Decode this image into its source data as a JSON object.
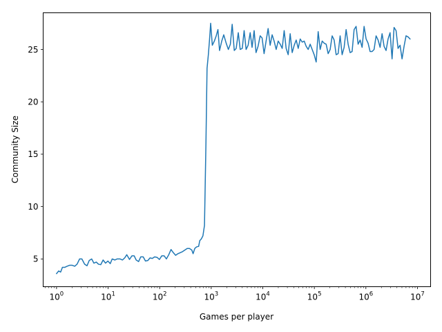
{
  "chart_data": {
    "type": "line",
    "title": "",
    "xlabel": "Games per player",
    "ylabel": "Community Size",
    "xscale": "log",
    "xlim": [
      0.55,
      18000000
    ],
    "ylim": [
      2.35,
      28.5
    ],
    "grid": false,
    "legend": "none",
    "x_ticks": [
      {
        "value": 1,
        "base": "10",
        "exp": "0"
      },
      {
        "value": 10,
        "base": "10",
        "exp": "1"
      },
      {
        "value": 100,
        "base": "10",
        "exp": "2"
      },
      {
        "value": 1000,
        "base": "10",
        "exp": "3"
      },
      {
        "value": 10000,
        "base": "10",
        "exp": "4"
      },
      {
        "value": 100000,
        "base": "10",
        "exp": "5"
      },
      {
        "value": 1000000,
        "base": "10",
        "exp": "6"
      },
      {
        "value": 10000000,
        "base": "10",
        "exp": "7"
      }
    ],
    "y_ticks": [
      {
        "value": 5,
        "label": "5"
      },
      {
        "value": 10,
        "label": "10"
      },
      {
        "value": 15,
        "label": "15"
      },
      {
        "value": 20,
        "label": "20"
      },
      {
        "value": 25,
        "label": "25"
      }
    ],
    "series": [
      {
        "color": "#1f77b4",
        "points": [
          [
            1.0,
            3.6
          ],
          [
            1.1,
            3.85
          ],
          [
            1.2,
            3.75
          ],
          [
            1.3,
            4.2
          ],
          [
            1.45,
            4.2
          ],
          [
            1.6,
            4.3
          ],
          [
            1.8,
            4.4
          ],
          [
            2.0,
            4.4
          ],
          [
            2.25,
            4.3
          ],
          [
            2.5,
            4.5
          ],
          [
            2.8,
            5.0
          ],
          [
            3.1,
            5.0
          ],
          [
            3.5,
            4.5
          ],
          [
            3.9,
            4.35
          ],
          [
            4.3,
            4.85
          ],
          [
            4.8,
            5.0
          ],
          [
            5.3,
            4.6
          ],
          [
            5.9,
            4.7
          ],
          [
            6.5,
            4.5
          ],
          [
            7.2,
            4.45
          ],
          [
            8.0,
            4.9
          ],
          [
            8.9,
            4.6
          ],
          [
            9.9,
            4.8
          ],
          [
            11,
            4.55
          ],
          [
            12,
            5.0
          ],
          [
            13.5,
            4.9
          ],
          [
            15,
            5.0
          ],
          [
            17,
            5.0
          ],
          [
            19,
            4.9
          ],
          [
            21,
            5.1
          ],
          [
            23,
            5.4
          ],
          [
            26,
            4.95
          ],
          [
            29,
            5.3
          ],
          [
            32,
            5.3
          ],
          [
            35,
            4.9
          ],
          [
            39,
            4.75
          ],
          [
            43,
            5.2
          ],
          [
            48,
            5.2
          ],
          [
            53,
            4.8
          ],
          [
            59,
            4.85
          ],
          [
            65,
            5.1
          ],
          [
            72,
            5.05
          ],
          [
            80,
            5.2
          ],
          [
            89,
            5.15
          ],
          [
            99,
            4.95
          ],
          [
            110,
            5.3
          ],
          [
            122,
            5.3
          ],
          [
            135,
            5.0
          ],
          [
            150,
            5.4
          ],
          [
            166,
            5.9
          ],
          [
            184,
            5.6
          ],
          [
            204,
            5.35
          ],
          [
            226,
            5.5
          ],
          [
            251,
            5.6
          ],
          [
            278,
            5.7
          ],
          [
            308,
            5.85
          ],
          [
            342,
            6.0
          ],
          [
            379,
            6.0
          ],
          [
            420,
            5.85
          ],
          [
            445,
            5.5
          ],
          [
            480,
            6.0
          ],
          [
            520,
            6.15
          ],
          [
            570,
            6.2
          ],
          [
            600,
            6.75
          ],
          [
            640,
            6.9
          ],
          [
            690,
            7.2
          ],
          [
            740,
            8.2
          ],
          [
            790,
            16.0
          ],
          [
            830,
            23.2
          ],
          [
            880,
            24.5
          ],
          [
            930,
            26.0
          ],
          [
            975,
            27.5
          ],
          [
            1050,
            25.4
          ],
          [
            1150,
            25.8
          ],
          [
            1250,
            26.3
          ],
          [
            1350,
            26.9
          ],
          [
            1450,
            24.9
          ],
          [
            1600,
            25.8
          ],
          [
            1750,
            26.4
          ],
          [
            1950,
            25.6
          ],
          [
            2150,
            25.0
          ],
          [
            2350,
            25.5
          ],
          [
            2550,
            27.4
          ],
          [
            2800,
            24.9
          ],
          [
            3050,
            25.1
          ],
          [
            3350,
            26.6
          ],
          [
            3650,
            25.0
          ],
          [
            4000,
            25.1
          ],
          [
            4350,
            26.8
          ],
          [
            4750,
            25.0
          ],
          [
            5200,
            25.4
          ],
          [
            5700,
            26.6
          ],
          [
            6200,
            25.2
          ],
          [
            6800,
            26.8
          ],
          [
            7400,
            24.7
          ],
          [
            8100,
            25.3
          ],
          [
            8900,
            26.3
          ],
          [
            9700,
            26.1
          ],
          [
            10600,
            24.6
          ],
          [
            11600,
            25.8
          ],
          [
            12700,
            27.0
          ],
          [
            13900,
            25.4
          ],
          [
            15200,
            26.4
          ],
          [
            16600,
            25.8
          ],
          [
            18200,
            25.0
          ],
          [
            19900,
            25.8
          ],
          [
            21800,
            25.5
          ],
          [
            23800,
            25.1
          ],
          [
            26000,
            26.8
          ],
          [
            28400,
            25.1
          ],
          [
            31100,
            24.5
          ],
          [
            34000,
            26.5
          ],
          [
            37200,
            24.7
          ],
          [
            40700,
            25.4
          ],
          [
            44500,
            25.9
          ],
          [
            48700,
            25.1
          ],
          [
            53200,
            26.0
          ],
          [
            58200,
            25.7
          ],
          [
            63600,
            25.8
          ],
          [
            69500,
            25.3
          ],
          [
            76000,
            25.0
          ],
          [
            83100,
            25.5
          ],
          [
            90800,
            25.0
          ],
          [
            99300,
            24.5
          ],
          [
            108600,
            23.8
          ],
          [
            118700,
            26.7
          ],
          [
            129800,
            25.0
          ],
          [
            141900,
            25.8
          ],
          [
            155100,
            25.6
          ],
          [
            169600,
            25.5
          ],
          [
            185400,
            24.6
          ],
          [
            202700,
            25.0
          ],
          [
            221600,
            26.3
          ],
          [
            242300,
            25.9
          ],
          [
            264900,
            24.5
          ],
          [
            289600,
            24.6
          ],
          [
            316600,
            26.3
          ],
          [
            346100,
            24.5
          ],
          [
            378400,
            25.2
          ],
          [
            413700,
            26.9
          ],
          [
            452300,
            25.5
          ],
          [
            494500,
            24.7
          ],
          [
            540600,
            24.8
          ],
          [
            591100,
            26.9
          ],
          [
            646200,
            27.2
          ],
          [
            706500,
            25.5
          ],
          [
            772400,
            25.9
          ],
          [
            844500,
            25.2
          ],
          [
            923300,
            27.2
          ],
          [
            1009500,
            26.0
          ],
          [
            1103700,
            25.6
          ],
          [
            1206700,
            24.8
          ],
          [
            1319300,
            24.8
          ],
          [
            1442400,
            25.0
          ],
          [
            1577000,
            26.3
          ],
          [
            1724200,
            25.9
          ],
          [
            1885100,
            25.2
          ],
          [
            2061000,
            26.5
          ],
          [
            2253300,
            25.3
          ],
          [
            2463500,
            24.9
          ],
          [
            2693300,
            26.0
          ],
          [
            2944600,
            26.6
          ],
          [
            3219300,
            24.1
          ],
          [
            3519700,
            27.1
          ],
          [
            3848100,
            26.8
          ],
          [
            4207100,
            25.1
          ],
          [
            4599600,
            25.4
          ],
          [
            5028700,
            24.1
          ],
          [
            5498000,
            25.3
          ],
          [
            6010900,
            26.3
          ],
          [
            6571800,
            26.2
          ],
          [
            7185000,
            26.0
          ]
        ]
      }
    ]
  }
}
